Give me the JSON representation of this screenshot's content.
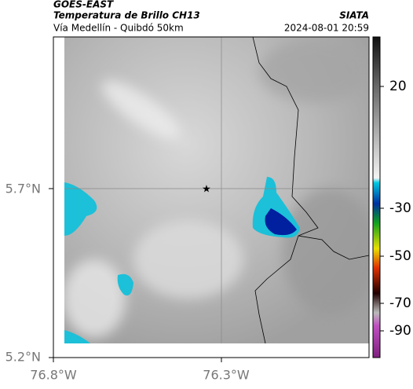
{
  "header": {
    "satellite": "GOES-EAST",
    "product": "Temperatura de Brillo CH13",
    "org": "SIATA",
    "region": "Vía Medellín - Quibdó 50km",
    "timestamp": "2024-08-01 20:59"
  },
  "map": {
    "lat_labels": [
      "5.7°N",
      "5.2°N"
    ],
    "lon_labels": [
      "76.8°W",
      "76.3°W"
    ]
  },
  "colorbar": {
    "ticks": [
      20,
      -30,
      -50,
      -70,
      -90
    ]
  }
}
